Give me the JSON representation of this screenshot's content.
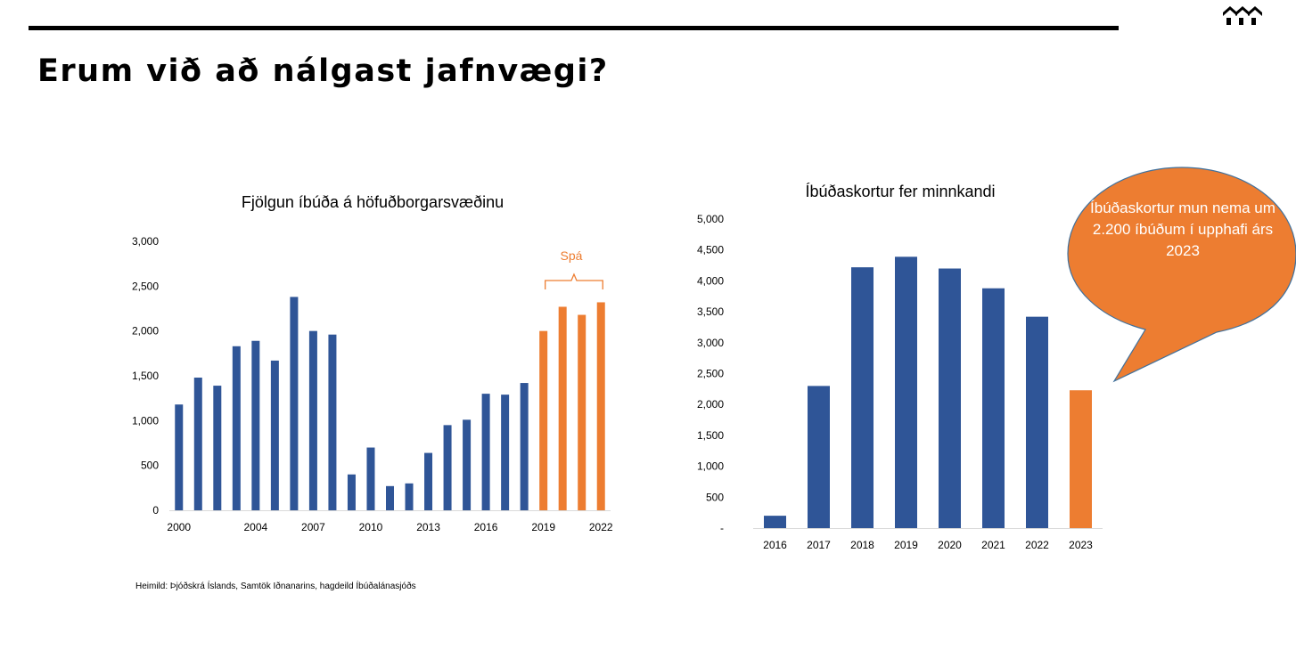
{
  "page": {
    "title": "Erum við að nálgast jafnvægi?",
    "source": "Heimild: Þjóðskrá Íslands, Samtök Iðnanarins, hagdeild Íbúðalánasjóðs",
    "logo_icon": "house-roofs-logo-icon"
  },
  "colors": {
    "actual": "#2f5597",
    "forecast": "#ed7d31",
    "forecast_bracket": "#ed7d31",
    "text": "#000000"
  },
  "callout": {
    "text": "Íbúðaskortur mun nema um 2.200 íbúðum í upphafi árs 2023",
    "fill": "#ed7d31"
  },
  "chart_data": [
    {
      "type": "bar",
      "title": "Fjölgun íbúða á höfuðborgarsvæðinu",
      "x": [
        2000,
        2001,
        2002,
        2003,
        2004,
        2005,
        2006,
        2007,
        2008,
        2009,
        2010,
        2011,
        2012,
        2013,
        2014,
        2015,
        2016,
        2017,
        2018,
        2019,
        2020,
        2021,
        2022
      ],
      "values": [
        1180,
        1480,
        1390,
        1830,
        1890,
        1670,
        2380,
        2000,
        1960,
        400,
        700,
        270,
        300,
        640,
        950,
        1010,
        1300,
        1290,
        1420,
        2000,
        2270,
        2180,
        2320
      ],
      "forecast_from": 2019,
      "forecast_label": "Spá",
      "x_tick_labels": [
        "2000",
        "2004",
        "2007",
        "2010",
        "2013",
        "2016",
        "2019",
        "2022"
      ],
      "x_tick_years": [
        2000,
        2004,
        2007,
        2010,
        2013,
        2016,
        2019,
        2022
      ],
      "y_tick_labels": [
        "0",
        "500",
        "1,000",
        "1,500",
        "2,000",
        "2,500",
        "3,000"
      ],
      "ylim": [
        0,
        3000
      ],
      "grid": false,
      "legend": "none"
    },
    {
      "type": "bar",
      "title": "Íbúðaskortur fer minnkandi",
      "categories": [
        "2016",
        "2017",
        "2018",
        "2019",
        "2020",
        "2021",
        "2022",
        "2023"
      ],
      "values": [
        200,
        2300,
        4220,
        4390,
        4200,
        3880,
        3420,
        2230
      ],
      "forecast_from": "2023",
      "y_tick_labels": [
        "-",
        "500",
        "1,000",
        "1,500",
        "2,000",
        "2,500",
        "3,000",
        "3,500",
        "4,000",
        "4,500",
        "5,000"
      ],
      "ylim": [
        0,
        5000
      ],
      "grid": false,
      "legend": "none"
    }
  ]
}
